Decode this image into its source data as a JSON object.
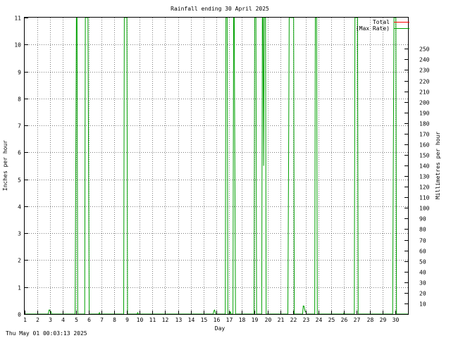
{
  "chart_data": {
    "type": "line",
    "title": "Rainfall ending 30 April 2025",
    "xlabel": "Day",
    "ylabel": "Inches per hour",
    "y2label": "Millimetres per hour",
    "xlim": [
      1,
      31
    ],
    "ylim": [
      0,
      11
    ],
    "y2lim": [
      0,
      279.4
    ],
    "x_ticks": [
      1,
      2,
      3,
      4,
      5,
      6,
      7,
      8,
      9,
      10,
      11,
      12,
      13,
      14,
      15,
      16,
      17,
      18,
      19,
      20,
      21,
      22,
      23,
      24,
      25,
      26,
      27,
      28,
      29,
      30
    ],
    "y_ticks": [
      0,
      1,
      2,
      3,
      4,
      5,
      6,
      7,
      8,
      9,
      10,
      11
    ],
    "y2_ticks": [
      10,
      20,
      30,
      40,
      50,
      60,
      70,
      80,
      90,
      100,
      110,
      120,
      130,
      140,
      150,
      160,
      170,
      180,
      190,
      200,
      210,
      220,
      230,
      240,
      250
    ],
    "grid": true,
    "legend_position": "top-right",
    "series": [
      {
        "name": "Total",
        "color": "#ff0000",
        "x": [],
        "y": []
      },
      {
        "name": "(Max Rate)",
        "color": "#00a000",
        "x": [
          1.0,
          2.85,
          2.9,
          2.95,
          3.0,
          3.05,
          3.1,
          4.95,
          5.0,
          5.05,
          5.1,
          5.15,
          5.7,
          5.75,
          5.8,
          5.95,
          6.0,
          6.05,
          6.8,
          6.85,
          6.9,
          8.75,
          8.8,
          8.85,
          8.9,
          8.95,
          9.0,
          9.05,
          9.8,
          9.85,
          9.9,
          15.75,
          15.8,
          15.85,
          15.9,
          15.95,
          16.7,
          16.75,
          16.8,
          16.85,
          16.9,
          17.05,
          17.1,
          17.15,
          17.3,
          17.35,
          17.4,
          17.45,
          17.5,
          18.95,
          19.0,
          19.05,
          19.1,
          19.15,
          19.55,
          19.6,
          19.65,
          19.7,
          19.75,
          19.8,
          19.85,
          19.9,
          21.6,
          21.65,
          21.7,
          21.8,
          21.85,
          21.9,
          22.0,
          22.05,
          22.1,
          22.75,
          22.8,
          22.85,
          22.9,
          22.95,
          23.0,
          23.05,
          23.7,
          23.75,
          23.8,
          23.85,
          23.9,
          25.95,
          26.0,
          26.05,
          26.8,
          26.85,
          26.9,
          26.95,
          27.0,
          27.05,
          27.1,
          29.8,
          29.85,
          29.9,
          29.95,
          30.0,
          30.05,
          30.1,
          31.0
        ],
        "y": [
          0,
          0,
          0.15,
          0.15,
          0.1,
          0.1,
          0,
          0,
          5.5,
          11,
          11,
          0,
          0,
          11,
          11,
          11,
          5.5,
          0,
          0,
          0.05,
          0,
          0,
          11,
          11,
          11,
          11,
          11,
          0,
          0,
          0.05,
          0,
          0,
          0.1,
          0.15,
          0.1,
          0,
          0,
          11,
          11,
          11,
          0,
          0,
          0.1,
          0,
          0,
          11,
          11,
          5.5,
          0,
          0,
          11,
          11,
          11,
          0,
          0,
          11,
          11,
          5.5,
          11,
          11,
          11,
          0,
          0,
          5.5,
          11,
          11,
          11,
          11,
          11,
          11,
          0,
          0,
          0.3,
          0.3,
          0.2,
          0.1,
          0.1,
          0,
          0,
          11,
          11,
          11,
          0,
          0,
          0.05,
          0,
          0,
          11,
          11,
          11,
          11,
          11,
          0,
          0,
          5.5,
          11,
          11,
          11,
          11,
          0,
          0
        ]
      }
    ]
  },
  "footer": {
    "timestamp": "Thu May 01 00:03:13 2025"
  }
}
